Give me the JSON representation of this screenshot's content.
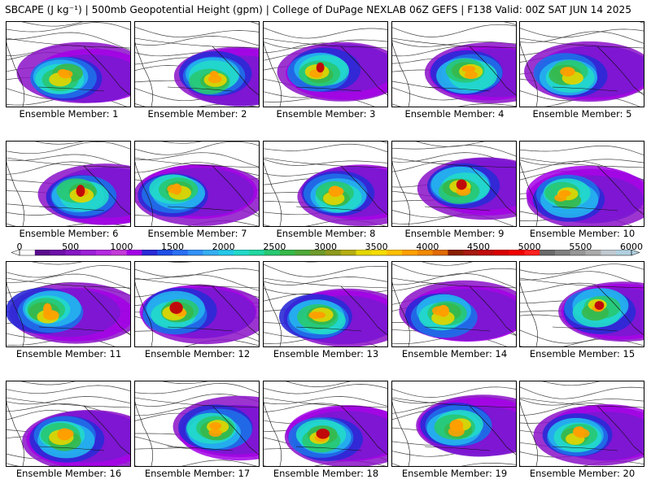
{
  "title": "SBCAPE (J kg⁻¹) | 500mb Geopotential Height (gpm) | College of DuPage NEXLAB 06Z GEFS | F138 Valid: 00Z SAT JUN 14 2025",
  "members": [
    "Ensemble Member: 1",
    "Ensemble Member: 2",
    "Ensemble Member: 3",
    "Ensemble Member: 4",
    "Ensemble Member: 5",
    "Ensemble Member: 6",
    "Ensemble Member: 7",
    "Ensemble Member: 8",
    "Ensemble Member: 9",
    "Ensemble Member: 10",
    "Ensemble Member: 11",
    "Ensemble Member: 12",
    "Ensemble Member: 13",
    "Ensemble Member: 14",
    "Ensemble Member: 15",
    "Ensemble Member: 16",
    "Ensemble Member: 17",
    "Ensemble Member: 18",
    "Ensemble Member: 19",
    "Ensemble Member: 20"
  ],
  "colorbar": {
    "ticks": [
      "0",
      "500",
      "1000",
      "1500",
      "2000",
      "2500",
      "3000",
      "3500",
      "4000",
      "4500",
      "5000",
      "5500",
      "6000"
    ],
    "colors": [
      "#ffffff",
      "#5a0a8c",
      "#6e0fa8",
      "#8518c2",
      "#9c20d6",
      "#b42ae0",
      "#c43bd8",
      "#a300e6",
      "#2a2ad6",
      "#1f4fe6",
      "#2a6ff2",
      "#3390f5",
      "#35aef0",
      "#25c8e8",
      "#22d9c9",
      "#20d7a0",
      "#28c872",
      "#37b84a",
      "#4fa83a",
      "#6e9a2c",
      "#8f9a1e",
      "#b5ad10",
      "#e4d600",
      "#f6dc00",
      "#ffc000",
      "#ffa000",
      "#f08a00",
      "#e06a00",
      "#8a2000",
      "#a51a10",
      "#c00a0a",
      "#d80000",
      "#f00000",
      "#ff2020",
      "#6a6a6a",
      "#808080",
      "#969696",
      "#aaaaaa",
      "#c0c8d0",
      "#b0d0e0"
    ]
  }
}
